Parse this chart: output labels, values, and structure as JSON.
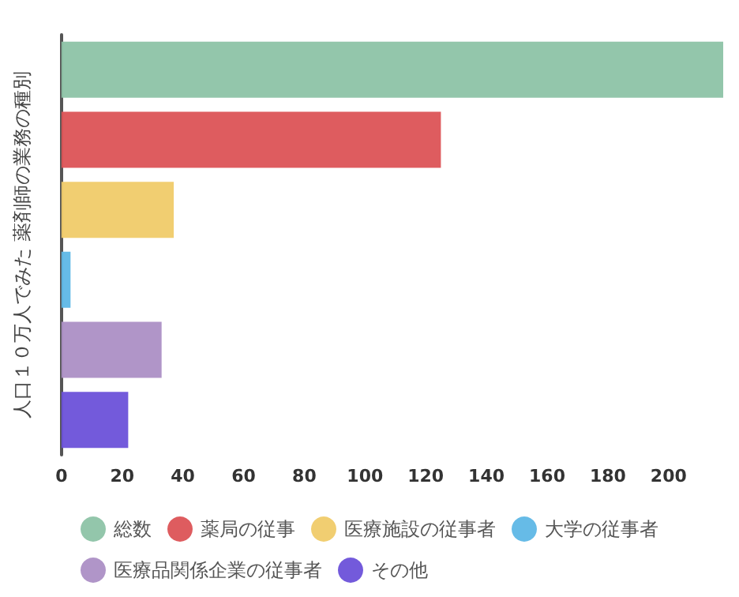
{
  "chart_data": {
    "type": "bar",
    "orientation": "horizontal",
    "ylabel": "人口１０万人でみた 薬剤師の業務の種別",
    "categories": [
      null,
      null,
      null,
      null,
      null,
      null
    ],
    "series": [
      {
        "name": "総数",
        "color": "#8dc3a7",
        "values": [
          218,
          null,
          null,
          null,
          null,
          null
        ]
      },
      {
        "name": "薬局の従事",
        "color": "#dc5356",
        "values": [
          null,
          125,
          null,
          null,
          null,
          null
        ]
      },
      {
        "name": "医療施設の従事者",
        "color": "#f0cb69",
        "values": [
          null,
          null,
          37,
          null,
          null,
          null
        ]
      },
      {
        "name": "大学の従事者",
        "color": "#5eb7e6",
        "values": [
          null,
          null,
          null,
          3,
          null,
          null
        ]
      },
      {
        "name": "医療品関係企業の従事者",
        "color": "#ac8fc5",
        "values": [
          null,
          null,
          null,
          null,
          33,
          null
        ]
      },
      {
        "name": "その他",
        "color": "#6c51d9",
        "values": [
          null,
          null,
          null,
          null,
          null,
          22
        ]
      }
    ],
    "xlim": [
      0,
      218
    ],
    "xticks": [
      0,
      20,
      40,
      60,
      80,
      100,
      120,
      140,
      160,
      180,
      200
    ],
    "grid": false,
    "legend": "bottom"
  }
}
